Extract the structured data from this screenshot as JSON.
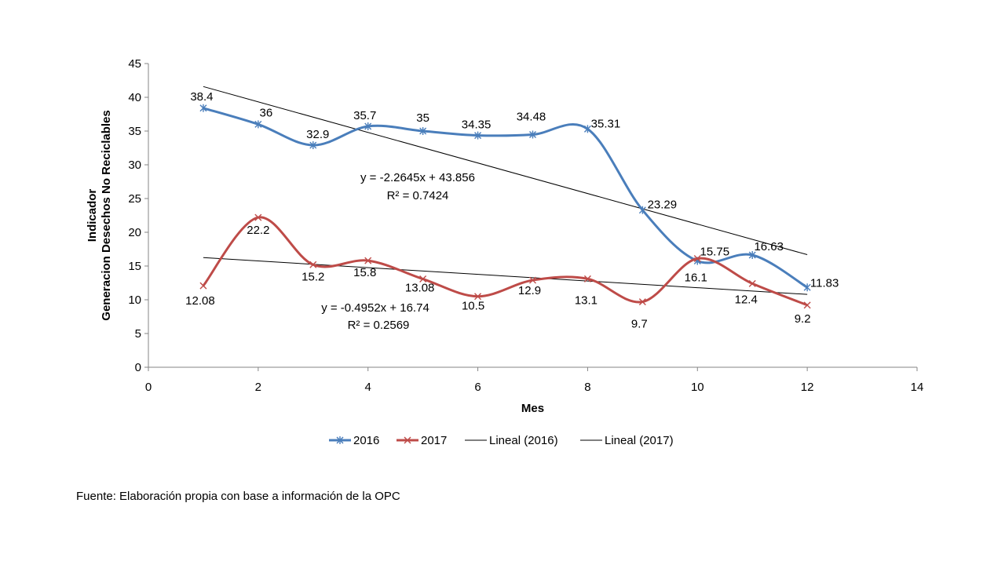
{
  "chart_data": {
    "type": "line",
    "title": "",
    "xlabel": "Mes",
    "ylabel_lines": [
      "Indicador",
      "Generacion Desechos No Reciclables"
    ],
    "xlim": [
      0,
      14
    ],
    "ylim": [
      0,
      45
    ],
    "x_ticks": [
      "0",
      "2",
      "4",
      "6",
      "8",
      "10",
      "12",
      "14"
    ],
    "y_ticks": [
      "0",
      "5",
      "10",
      "15",
      "20",
      "25",
      "30",
      "35",
      "40",
      "45"
    ],
    "grid": false,
    "legend_position": "bottom",
    "series": [
      {
        "name": "2016",
        "color": "#4a7ebb",
        "marker": "asterisk",
        "x": [
          1,
          2,
          3,
          4,
          5,
          6,
          7,
          8,
          9,
          10,
          11,
          12
        ],
        "values": [
          38.4,
          36,
          32.9,
          35.7,
          35,
          34.35,
          34.48,
          35.31,
          23.29,
          15.75,
          16.63,
          11.83
        ],
        "labels": [
          "38.4",
          "36",
          "32.9",
          "35.7",
          "35",
          "34.35",
          "34.48",
          "35.31",
          "23.29",
          "15.75",
          "16.63",
          "11.83"
        ]
      },
      {
        "name": "2017",
        "color": "#be4b48",
        "marker": "x",
        "x": [
          1,
          2,
          3,
          4,
          5,
          6,
          7,
          8,
          9,
          10,
          11,
          12
        ],
        "values": [
          12.08,
          22.2,
          15.2,
          15.8,
          13.08,
          10.5,
          12.9,
          13.1,
          9.7,
          16.1,
          12.4,
          9.2
        ],
        "labels": [
          "12.08",
          "22.2",
          "15.2",
          "15.8",
          "13.08",
          "10.5",
          "12.9",
          "13.1",
          "9.7",
          "16.1",
          "12.4",
          "9.2"
        ]
      }
    ],
    "trendlines": [
      {
        "name": "Lineal (2016)",
        "slope": -2.2645,
        "intercept": 43.856,
        "x_range": [
          1,
          12
        ],
        "color": "#000000",
        "equation": "y = -2.2645x + 43.856",
        "r2": "R² = 0.7424"
      },
      {
        "name": "Lineal (2017)",
        "slope": -0.4952,
        "intercept": 16.74,
        "x_range": [
          1,
          12
        ],
        "color": "#000000",
        "equation": "y = -0.4952x + 16.74",
        "r2": "R² = 0.2569"
      }
    ]
  },
  "source_note": "Fuente: Elaboración propia con base a información de la OPC"
}
